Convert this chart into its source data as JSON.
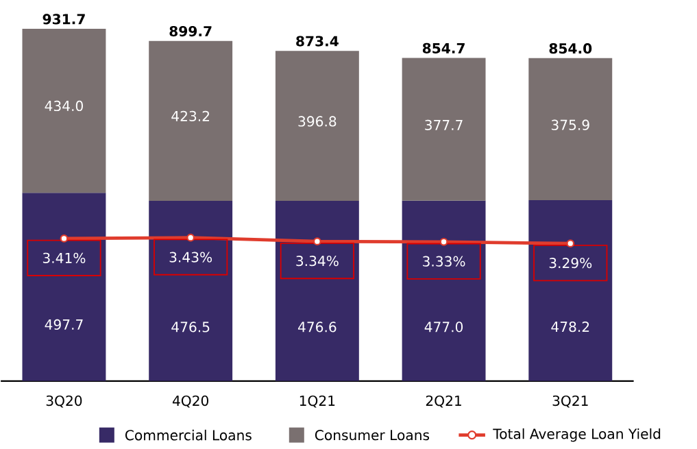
{
  "chart_data": {
    "type": "bar",
    "stacked": true,
    "categories": [
      "3Q20",
      "4Q20",
      "1Q21",
      "2Q21",
      "3Q21"
    ],
    "series": [
      {
        "name": "Commercial Loans",
        "color": "#372a66",
        "values": [
          497.7,
          476.5,
          476.6,
          477.0,
          478.2
        ],
        "value_labels": [
          "497.7",
          "476.5",
          "476.6",
          "477.0",
          "478.2"
        ]
      },
      {
        "name": "Consumer Loans",
        "color": "#7a7070",
        "values": [
          434.0,
          423.2,
          396.8,
          377.7,
          375.9
        ],
        "value_labels": [
          "434.0",
          "423.2",
          "396.8",
          "377.7",
          "375.9"
        ]
      },
      {
        "name": "Total Average Loan Yield",
        "type": "line",
        "axis": "y2",
        "color": "#e03c2d",
        "marker": "circle",
        "values": [
          3.41,
          3.43,
          3.34,
          3.33,
          3.29
        ],
        "value_labels": [
          "3.41%",
          "3.43%",
          "3.34%",
          "3.33%",
          "3.29%"
        ]
      }
    ],
    "totals": [
      "931.7",
      "899.7",
      "873.4",
      "854.7",
      "854.0"
    ],
    "tick_labels": "x",
    "grid": false,
    "legend": "bottom"
  }
}
